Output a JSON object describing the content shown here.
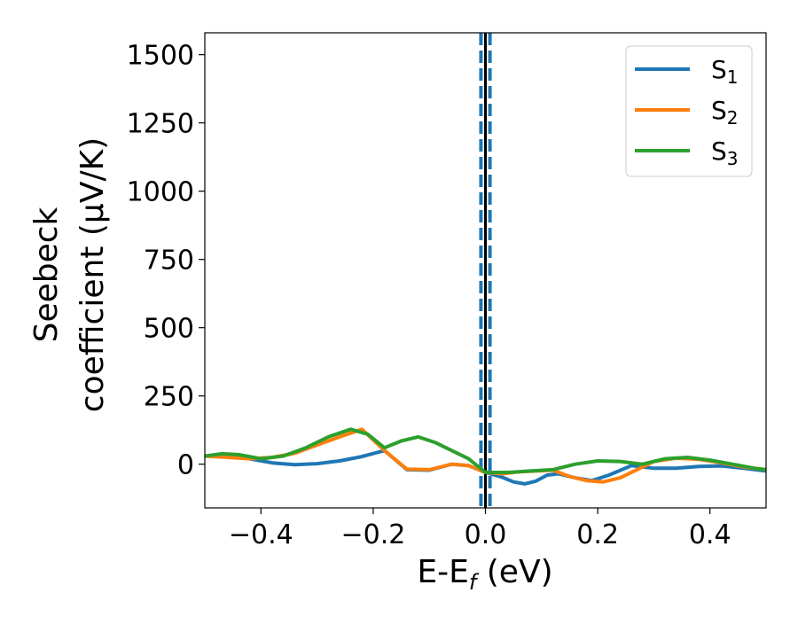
{
  "chart_data": {
    "type": "line",
    "xlabel": "E-E",
    "xlabel_sub": "f",
    "xlabel_unit": " (eV)",
    "ylabel_line1": "Seebeck",
    "ylabel_line2": "coefficient  (μV/K)",
    "xlim": [
      -0.5,
      0.5
    ],
    "ylim": [
      -160,
      1580
    ],
    "xticks": [
      -0.4,
      -0.2,
      0.0,
      0.2,
      0.4
    ],
    "xtick_labels": [
      "−0.4",
      "−0.2",
      "0.0",
      "0.2",
      "0.4"
    ],
    "yticks": [
      0,
      250,
      500,
      750,
      1000,
      1250,
      1500
    ],
    "ytick_labels": [
      "0",
      "250",
      "500",
      "750",
      "1000",
      "1250",
      "1500"
    ],
    "legend_position": "top-right",
    "grid": false,
    "vlines": [
      {
        "x": 0.0,
        "color": "#000000",
        "style": "solid"
      },
      {
        "x": -0.008,
        "color": "#1f77b4",
        "style": "dashed"
      },
      {
        "x": 0.008,
        "color": "#1f77b4",
        "style": "dashed"
      }
    ],
    "series": [
      {
        "name": "S",
        "sub": "1",
        "color": "#1f77b4",
        "x": [
          -0.5,
          -0.46,
          -0.42,
          -0.38,
          -0.34,
          -0.3,
          -0.26,
          -0.22,
          -0.18,
          -0.14,
          -0.1,
          -0.06,
          -0.03,
          0.0,
          0.03,
          0.05,
          0.07,
          0.09,
          0.11,
          0.13,
          0.16,
          0.19,
          0.22,
          0.26,
          0.3,
          0.34,
          0.38,
          0.42,
          0.46,
          0.5
        ],
        "y": [
          30,
          28,
          20,
          5,
          -2,
          2,
          12,
          28,
          50,
          -20,
          -22,
          0,
          -5,
          -30,
          -48,
          -65,
          -72,
          -62,
          -40,
          -35,
          -50,
          -60,
          -40,
          -5,
          -15,
          -15,
          -8,
          -6,
          -15,
          -25
        ]
      },
      {
        "name": "S",
        "sub": "2",
        "color": "#ff7f0e",
        "x": [
          -0.5,
          -0.46,
          -0.42,
          -0.38,
          -0.34,
          -0.3,
          -0.26,
          -0.22,
          -0.18,
          -0.14,
          -0.1,
          -0.06,
          -0.03,
          0.0,
          0.03,
          0.06,
          0.09,
          0.12,
          0.15,
          0.18,
          0.21,
          0.24,
          0.27,
          0.3,
          0.34,
          0.38,
          0.42,
          0.46,
          0.5
        ],
        "y": [
          30,
          25,
          20,
          25,
          40,
          70,
          100,
          128,
          50,
          -18,
          -20,
          0,
          -5,
          -30,
          -35,
          -28,
          -25,
          -22,
          -45,
          -60,
          -65,
          -50,
          -20,
          10,
          22,
          18,
          5,
          -10,
          -20
        ]
      },
      {
        "name": "S",
        "sub": "3",
        "color": "#2ca02c",
        "x": [
          -0.5,
          -0.47,
          -0.44,
          -0.4,
          -0.36,
          -0.32,
          -0.28,
          -0.24,
          -0.21,
          -0.18,
          -0.15,
          -0.12,
          -0.09,
          -0.06,
          -0.03,
          0.0,
          0.04,
          0.08,
          0.12,
          0.16,
          0.2,
          0.24,
          0.28,
          0.32,
          0.36,
          0.4,
          0.44,
          0.48,
          0.5
        ],
        "y": [
          30,
          38,
          35,
          20,
          30,
          60,
          100,
          128,
          110,
          60,
          85,
          100,
          80,
          50,
          20,
          -30,
          -30,
          -25,
          -20,
          0,
          12,
          10,
          0,
          20,
          25,
          15,
          0,
          -15,
          -20
        ]
      }
    ]
  }
}
